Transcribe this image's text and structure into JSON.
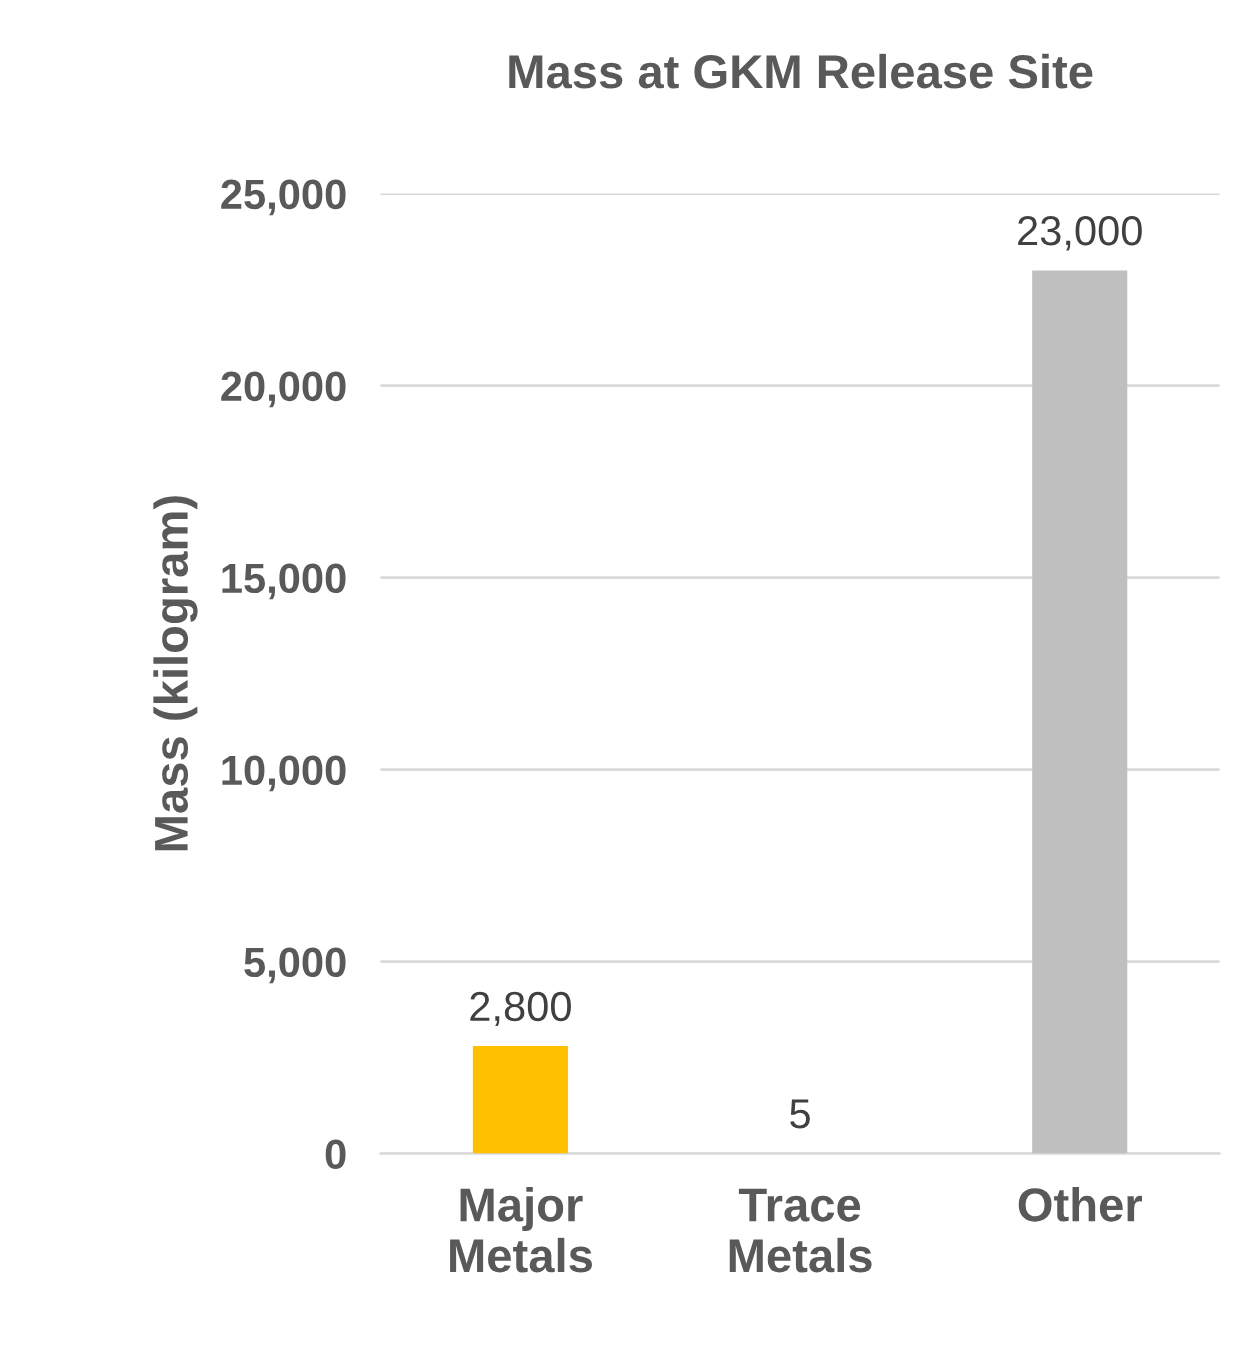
{
  "chart_data": {
    "type": "bar",
    "title": "Mass at GKM Release Site",
    "ylabel": "Mass (kilogram)",
    "categories": [
      "Major Metals",
      "Trace Metals",
      "Other"
    ],
    "values": [
      2800,
      5,
      23000
    ],
    "colors": [
      "#ffc000",
      "#a5a5a5",
      "#bfbfbf"
    ],
    "value_labels": [
      "2,800",
      "5",
      "23,000"
    ],
    "ylim": [
      0,
      25000
    ],
    "yticks": [
      0,
      {
        "value": 5000,
        "label": "5,000"
      },
      {
        "value": 10000,
        "label": "10,000"
      },
      {
        "value": 15000,
        "label": "15,000"
      },
      {
        "value": 20000,
        "label": "20,000"
      },
      {
        "value": 25000,
        "label": "25,000"
      }
    ],
    "grid": "y",
    "legend": false
  }
}
